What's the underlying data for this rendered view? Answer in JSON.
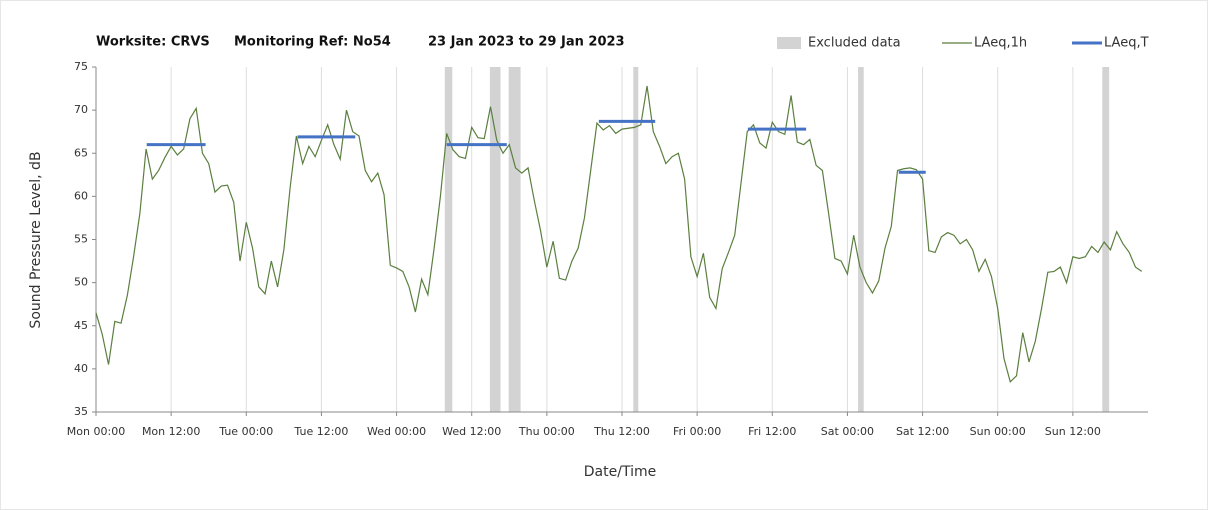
{
  "chart_data": {
    "type": "line",
    "title_parts": [
      "Worksite: CRVS",
      "Monitoring Ref: No54",
      "23 Jan 2023 to 29 Jan 2023"
    ],
    "xlabel": "Date/Time",
    "ylabel": "Sound Pressure Level, dB",
    "xlim": [
      0,
      168
    ],
    "xticks": [
      {
        "value": 0,
        "label": "Mon 00:00"
      },
      {
        "value": 12,
        "label": "Mon 12:00"
      },
      {
        "value": 24,
        "label": "Tue 00:00"
      },
      {
        "value": 36,
        "label": "Tue 12:00"
      },
      {
        "value": 48,
        "label": "Wed 00:00"
      },
      {
        "value": 60,
        "label": "Wed 12:00"
      },
      {
        "value": 72,
        "label": "Thu 00:00"
      },
      {
        "value": 84,
        "label": "Thu 12:00"
      },
      {
        "value": 96,
        "label": "Fri 00:00"
      },
      {
        "value": 108,
        "label": "Fri 12:00"
      },
      {
        "value": 120,
        "label": "Sat 00:00"
      },
      {
        "value": 132,
        "label": "Sat 12:00"
      },
      {
        "value": 144,
        "label": "Sun 00:00"
      },
      {
        "value": 156,
        "label": "Sun 12:00"
      }
    ],
    "ylim": [
      35,
      75
    ],
    "yticks": [
      35,
      40,
      45,
      50,
      55,
      60,
      65,
      70,
      75
    ],
    "grid": true,
    "legend_position": "top-right",
    "excluded": {
      "name": "Excluded data",
      "color": "#d3d3d3",
      "ranges": [
        [
          55.7,
          56.9
        ],
        [
          62.9,
          64.6
        ],
        [
          65.9,
          67.8
        ],
        [
          85.8,
          86.6
        ],
        [
          121.7,
          122.6
        ],
        [
          160.7,
          161.8
        ]
      ]
    },
    "series": [
      {
        "name": "LAeq,1h",
        "color": "#5b7f3f",
        "values": [
          46.5,
          44,
          40.5,
          45.5,
          45.3,
          48.5,
          53,
          58,
          65.5,
          62,
          63,
          64.5,
          65.8,
          64.8,
          65.5,
          69,
          70.2,
          65,
          63.8,
          60.5,
          61.2,
          61.3,
          59.3,
          52.5,
          57,
          54,
          49.5,
          48.7,
          52.5,
          49.5,
          53.8,
          61,
          67,
          63.8,
          65.8,
          64.6,
          66.5,
          68.3,
          66,
          64.3,
          70,
          67.5,
          67,
          63,
          61.7,
          62.7,
          60.2,
          52,
          51.7,
          51.3,
          49.5,
          46.6,
          50.4,
          48.6,
          54,
          60,
          67.3,
          65.4,
          64.6,
          64.4,
          68,
          66.8,
          66.7,
          70.4,
          66.5,
          65,
          66,
          63.3,
          62.7,
          63.3,
          59.5,
          56,
          51.8,
          54.8,
          50.5,
          50.3,
          52.5,
          54,
          57.5,
          63,
          68.5,
          67.7,
          68.2,
          67.3,
          67.8,
          67.9,
          68,
          68.3,
          72.8,
          67.5,
          65.8,
          63.8,
          64.6,
          65,
          62,
          53,
          50.7,
          53.4,
          48.3,
          47,
          51.6,
          53.5,
          55.5,
          61.5,
          67.5,
          68.3,
          66.2,
          65.6,
          68.6,
          67.5,
          67.2,
          71.7,
          66.3,
          66,
          66.6,
          63.6,
          63,
          58,
          52.8,
          52.5,
          51,
          55.5,
          51.8,
          50,
          48.8,
          50.2,
          54,
          56.5,
          63,
          63.2,
          63.3,
          63.1,
          62,
          53.7,
          53.5,
          55.3,
          55.8,
          55.5,
          54.5,
          55,
          53.8,
          51.3,
          52.7,
          50.7,
          47,
          41.2,
          38.5,
          39.2,
          44.2,
          40.8,
          43.2,
          47,
          51.2,
          51.3,
          51.8,
          50,
          53,
          52.8,
          53,
          54.2,
          53.5,
          54.7,
          53.8,
          55.9,
          54.5,
          53.5,
          51.8,
          51.3
        ]
      },
      {
        "name": "LAeq,T",
        "color": "#4472c4",
        "segments": [
          {
            "x": [
              8.1,
              17.5
            ],
            "value": 66.0
          },
          {
            "x": [
              32.2,
              41.4
            ],
            "value": 66.9
          },
          {
            "x": [
              56,
              65.6
            ],
            "value": 66.0
          },
          {
            "x": [
              80.3,
              89.3
            ],
            "value": 68.7
          },
          {
            "x": [
              104.1,
              113.4
            ],
            "value": 67.8
          },
          {
            "x": [
              128.2,
              132.5
            ],
            "value": 62.8
          }
        ]
      }
    ]
  }
}
